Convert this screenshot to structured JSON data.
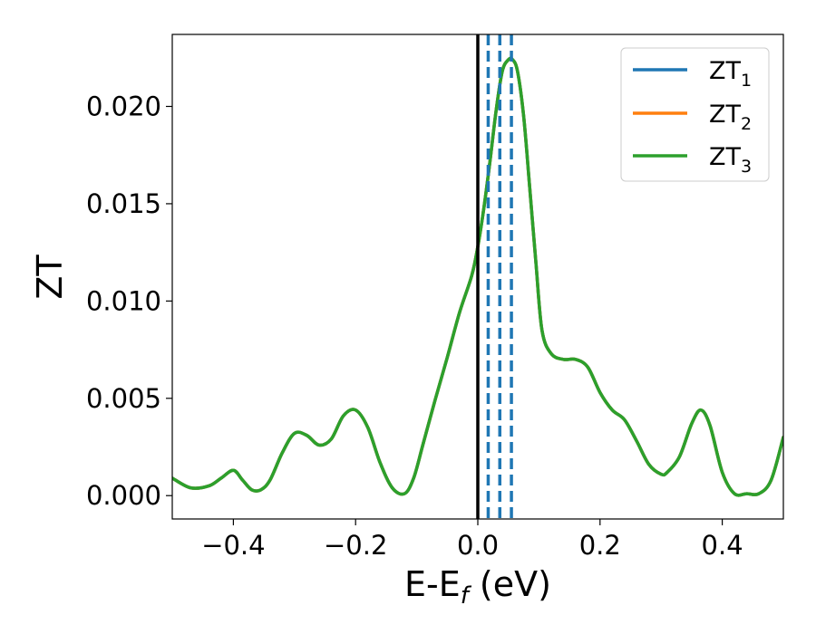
{
  "chart_data": {
    "type": "line",
    "xlabel": "E-E",
    "xlabel_sub": "f",
    "xlabel_unit": "(eV)",
    "ylabel": "ZT",
    "xlim": [
      -0.5,
      0.5
    ],
    "ylim": [
      -0.0012,
      0.0237
    ],
    "x_ticks": [
      -0.4,
      -0.2,
      0.0,
      0.2,
      0.4
    ],
    "x_tick_labels": [
      "−0.4",
      "−0.2",
      "0.0",
      "0.2",
      "0.4"
    ],
    "y_ticks": [
      0.0,
      0.005,
      0.01,
      0.015,
      0.02
    ],
    "y_tick_labels": [
      "0.000",
      "0.005",
      "0.010",
      "0.015",
      "0.020"
    ],
    "grid": false,
    "legend_position": "top-right",
    "series": [
      {
        "name": "ZT",
        "name_sub": "1",
        "color": "#1f77b4",
        "x": [
          -0.5,
          -0.47,
          -0.44,
          -0.42,
          -0.4,
          -0.385,
          -0.37,
          -0.355,
          -0.34,
          -0.32,
          -0.3,
          -0.28,
          -0.26,
          -0.24,
          -0.22,
          -0.2,
          -0.18,
          -0.16,
          -0.14,
          -0.12,
          -0.105,
          -0.09,
          -0.07,
          -0.05,
          -0.03,
          -0.01,
          0.0,
          0.01,
          0.02,
          0.03,
          0.04,
          0.05,
          0.057,
          0.065,
          0.075,
          0.085,
          0.095,
          0.105,
          0.12,
          0.14,
          0.16,
          0.18,
          0.2,
          0.22,
          0.24,
          0.26,
          0.28,
          0.3,
          0.31,
          0.33,
          0.35,
          0.365,
          0.38,
          0.4,
          0.42,
          0.44,
          0.46,
          0.48,
          0.5
        ],
        "y": [
          0.0009,
          0.0004,
          0.0005,
          0.0009,
          0.0013,
          0.0008,
          0.0003,
          0.0003,
          0.0008,
          0.0022,
          0.0032,
          0.0031,
          0.0026,
          0.0029,
          0.0041,
          0.0044,
          0.0035,
          0.0017,
          0.0004,
          0.0001,
          0.0009,
          0.0026,
          0.0049,
          0.0071,
          0.0094,
          0.0113,
          0.0128,
          0.0148,
          0.0172,
          0.0198,
          0.0218,
          0.0224,
          0.0224,
          0.0218,
          0.0195,
          0.0158,
          0.012,
          0.0085,
          0.0073,
          0.007,
          0.007,
          0.0066,
          0.0053,
          0.0044,
          0.0039,
          0.0028,
          0.0016,
          0.0011,
          0.0012,
          0.002,
          0.0037,
          0.0044,
          0.0036,
          0.0012,
          0.0001,
          0.0001,
          0.0001,
          0.0008,
          0.003
        ]
      },
      {
        "name": "ZT",
        "name_sub": "2",
        "color": "#ff7f0e",
        "x": [
          -0.5,
          -0.47,
          -0.44,
          -0.42,
          -0.4,
          -0.385,
          -0.37,
          -0.355,
          -0.34,
          -0.32,
          -0.3,
          -0.28,
          -0.26,
          -0.24,
          -0.22,
          -0.2,
          -0.18,
          -0.16,
          -0.14,
          -0.12,
          -0.105,
          -0.09,
          -0.07,
          -0.05,
          -0.03,
          -0.01,
          0.0,
          0.01,
          0.02,
          0.03,
          0.04,
          0.05,
          0.057,
          0.065,
          0.075,
          0.085,
          0.095,
          0.105,
          0.12,
          0.14,
          0.16,
          0.18,
          0.2,
          0.22,
          0.24,
          0.26,
          0.28,
          0.3,
          0.31,
          0.33,
          0.35,
          0.365,
          0.38,
          0.4,
          0.42,
          0.44,
          0.46,
          0.48,
          0.5
        ],
        "y": [
          0.0009,
          0.0004,
          0.0005,
          0.0009,
          0.0013,
          0.0008,
          0.0003,
          0.0003,
          0.0008,
          0.0022,
          0.0032,
          0.0031,
          0.0026,
          0.0029,
          0.0041,
          0.0044,
          0.0035,
          0.0017,
          0.0004,
          0.0001,
          0.0009,
          0.0026,
          0.0049,
          0.0071,
          0.0094,
          0.0113,
          0.0128,
          0.0148,
          0.0172,
          0.0198,
          0.0218,
          0.0224,
          0.0224,
          0.0218,
          0.0195,
          0.0158,
          0.012,
          0.0085,
          0.0073,
          0.007,
          0.007,
          0.0066,
          0.0053,
          0.0044,
          0.0039,
          0.0028,
          0.0016,
          0.0011,
          0.0012,
          0.002,
          0.0037,
          0.0044,
          0.0036,
          0.0012,
          0.0001,
          0.0001,
          0.0001,
          0.0008,
          0.003
        ]
      },
      {
        "name": "ZT",
        "name_sub": "3",
        "color": "#2ca02c",
        "x": [
          -0.5,
          -0.47,
          -0.44,
          -0.42,
          -0.4,
          -0.385,
          -0.37,
          -0.355,
          -0.34,
          -0.32,
          -0.3,
          -0.28,
          -0.26,
          -0.24,
          -0.22,
          -0.2,
          -0.18,
          -0.16,
          -0.14,
          -0.12,
          -0.105,
          -0.09,
          -0.07,
          -0.05,
          -0.03,
          -0.01,
          0.0,
          0.01,
          0.02,
          0.03,
          0.04,
          0.05,
          0.057,
          0.065,
          0.075,
          0.085,
          0.095,
          0.105,
          0.12,
          0.14,
          0.16,
          0.18,
          0.2,
          0.22,
          0.24,
          0.26,
          0.28,
          0.3,
          0.31,
          0.33,
          0.35,
          0.365,
          0.38,
          0.4,
          0.42,
          0.44,
          0.46,
          0.48,
          0.5
        ],
        "y": [
          0.0009,
          0.0004,
          0.0005,
          0.0009,
          0.0013,
          0.0008,
          0.0003,
          0.0003,
          0.0008,
          0.0022,
          0.0032,
          0.0031,
          0.0026,
          0.0029,
          0.0041,
          0.0044,
          0.0035,
          0.0017,
          0.0004,
          0.0001,
          0.0009,
          0.0026,
          0.0049,
          0.0071,
          0.0094,
          0.0113,
          0.0128,
          0.0148,
          0.0172,
          0.0198,
          0.0218,
          0.0224,
          0.0224,
          0.0218,
          0.0195,
          0.0158,
          0.012,
          0.0085,
          0.0073,
          0.007,
          0.007,
          0.0066,
          0.0053,
          0.0044,
          0.0039,
          0.0028,
          0.0016,
          0.0011,
          0.0012,
          0.002,
          0.0037,
          0.0044,
          0.0036,
          0.0012,
          0.0001,
          0.0001,
          0.0001,
          0.0008,
          0.003
        ]
      }
    ],
    "reference_lines": [
      {
        "x": 0.0,
        "style": "solid",
        "color": "#000000"
      },
      {
        "x": 0.017,
        "style": "dashed",
        "color": "#1f77b4"
      },
      {
        "x": 0.036,
        "style": "dashed",
        "color": "#1f77b4"
      },
      {
        "x": 0.055,
        "style": "dashed",
        "color": "#1f77b4"
      }
    ]
  }
}
